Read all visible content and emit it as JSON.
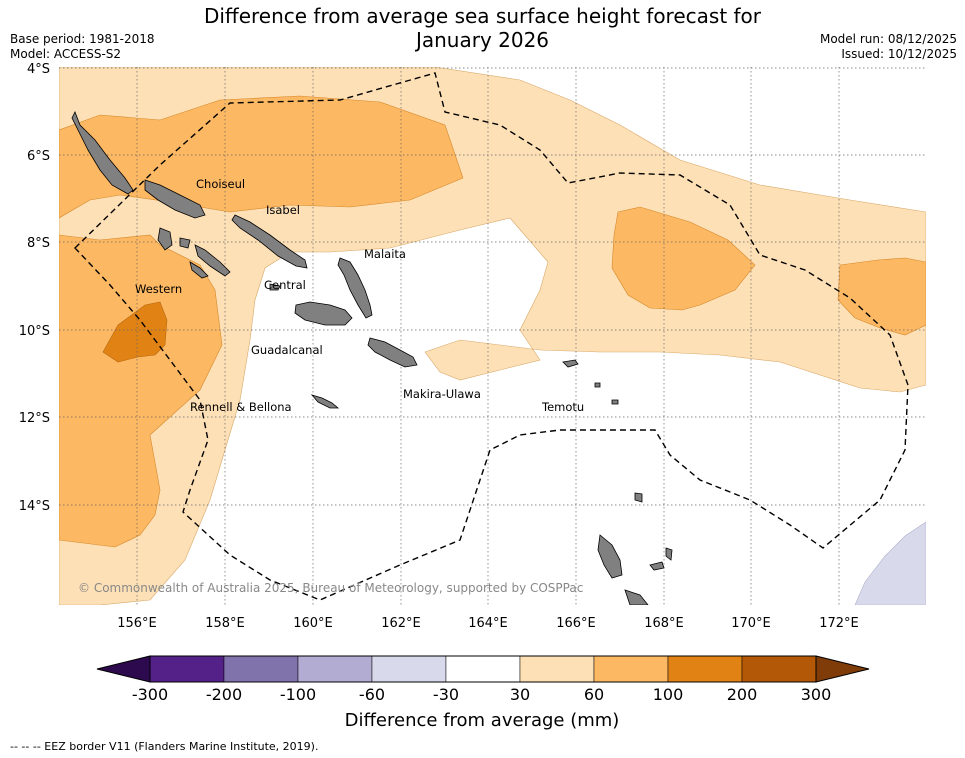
{
  "title": {
    "line1": "Difference from average sea surface height forecast for",
    "line2": "January 2026"
  },
  "meta": {
    "base_period": "Base period: 1981-2018",
    "model": "Model: ACCESS-S2",
    "model_run": "Model run: 08/12/2025",
    "issued": "Issued: 10/12/2025"
  },
  "map": {
    "lat_labels": [
      "4°S",
      "6°S",
      "8°S",
      "10°S",
      "12°S",
      "14°S"
    ],
    "lon_labels": [
      "156°E",
      "158°E",
      "160°E",
      "162°E",
      "164°E",
      "166°E",
      "168°E",
      "170°E",
      "172°E"
    ],
    "region_labels": [
      "Choiseul",
      "Isabel",
      "Malaita",
      "Western",
      "Central",
      "Guadalcanal",
      "Makira-Ulawa",
      "Rennell & Bellona",
      "Temotu"
    ],
    "copyright": "© Commonwealth of Australia 2025, Bureau of Meteorology, supported by COSPPac"
  },
  "colorbar": {
    "colors": [
      "#2d0a4e",
      "#542188",
      "#8073ac",
      "#b2abd2",
      "#d8daeb",
      "#ffffff",
      "#fee0b6",
      "#fdb863",
      "#e08214",
      "#b35806",
      "#7f3b08"
    ],
    "tick_labels": [
      "-300",
      "-200",
      "-100",
      "-60",
      "-30",
      "30",
      "60",
      "100",
      "200",
      "300"
    ],
    "label": "Difference from average (mm)"
  },
  "footer": {
    "legend": "--  --  -- EEZ border V11 (Flanders Marine Institute, 2019)."
  }
}
